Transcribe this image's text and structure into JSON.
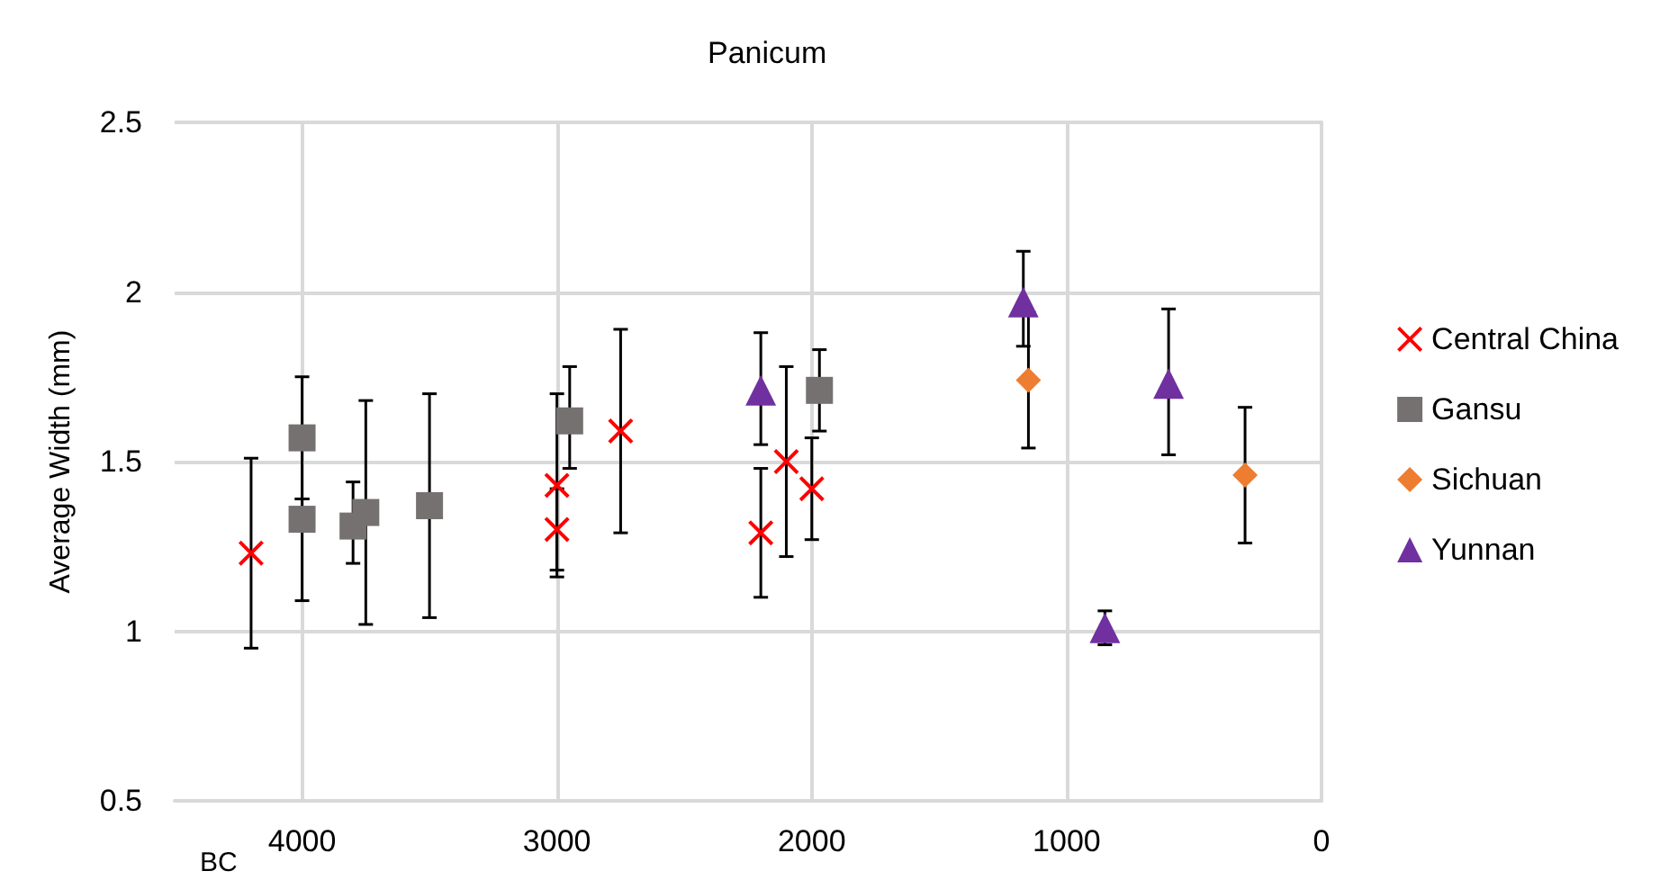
{
  "chart_data": {
    "type": "scatter",
    "title": "Panicum",
    "ylabel": "Average Width (mm)",
    "xlim": [
      4500,
      0
    ],
    "xticks": [
      4000,
      3000,
      2000,
      1000,
      0
    ],
    "ylim": [
      0.5,
      2.5
    ],
    "yticks": [
      0.5,
      1,
      1.5,
      2,
      2.5
    ],
    "grid": true,
    "legend": "right",
    "annotations": [
      "BC"
    ],
    "series": [
      {
        "name": "Central China",
        "color": "#ff0000",
        "marker": "cross",
        "x": [
          4200,
          3000,
          3000,
          2750,
          2200,
          2100,
          2000
        ],
        "values": [
          1.23,
          1.43,
          1.3,
          1.59,
          1.29,
          1.5,
          1.42
        ],
        "errors": [
          [
            0.95,
            1.51
          ],
          [
            1.16,
            1.7
          ],
          [
            1.18,
            1.42
          ],
          [
            1.29,
            1.89
          ],
          [
            1.1,
            1.48
          ],
          [
            1.22,
            1.78
          ],
          [
            1.27,
            1.57
          ]
        ]
      },
      {
        "name": "Gansu",
        "color": "#767171",
        "marker": "square",
        "x": [
          4000,
          4000,
          3800,
          3750,
          3500,
          2950,
          1970
        ],
        "values": [
          1.57,
          1.33,
          1.31,
          1.35,
          1.37,
          1.62,
          1.71
        ],
        "errors": [
          [
            1.39,
            1.75
          ],
          [
            1.09,
            1.39
          ],
          [
            1.2,
            1.44
          ],
          [
            1.02,
            1.68
          ],
          [
            1.04,
            1.7
          ],
          [
            1.48,
            1.78
          ],
          [
            1.59,
            1.83
          ]
        ]
      },
      {
        "name": "Sichuan",
        "color": "#ed7d31",
        "marker": "diamond",
        "x": [
          1150,
          300
        ],
        "values": [
          1.74,
          1.46
        ],
        "errors": [
          [
            1.54,
            1.94
          ],
          [
            1.26,
            1.66
          ]
        ]
      },
      {
        "name": "Yunnan",
        "color": "#7030a0",
        "marker": "triangle",
        "x": [
          2200,
          1170,
          850,
          600
        ],
        "values": [
          1.71,
          1.97,
          1.01,
          1.73
        ],
        "errors": [
          [
            1.55,
            1.88
          ],
          [
            1.84,
            2.12
          ],
          [
            0.96,
            1.06
          ],
          [
            1.52,
            1.95
          ]
        ]
      }
    ]
  }
}
